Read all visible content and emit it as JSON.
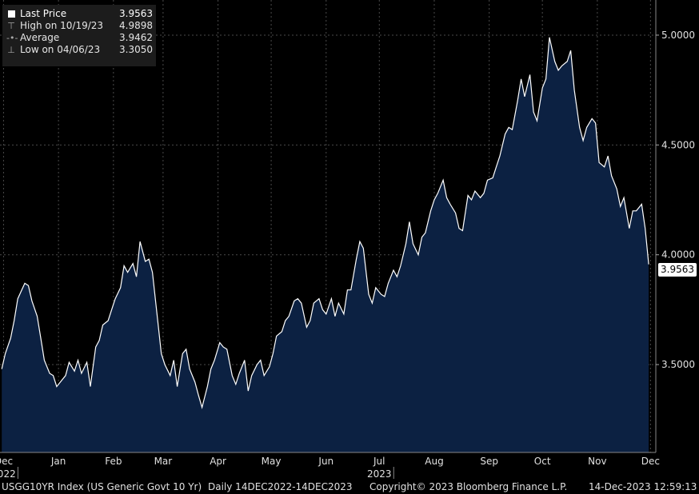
{
  "legend": [
    {
      "icon": "square-icon",
      "label": "Last Price",
      "value": "3.9563"
    },
    {
      "icon": "high-marker-icon",
      "label": "High on 10/19/23",
      "value": "4.9898"
    },
    {
      "icon": "average-marker-icon",
      "label": "Average",
      "value": "3.9462"
    },
    {
      "icon": "low-marker-icon",
      "label": "Low on 04/06/23",
      "value": "3.3050"
    }
  ],
  "last_price_label": "3.9563",
  "footer": {
    "ticker": "USGG10YR Index (US Generic Govt 10 Yr)",
    "range": "Daily 14DEC2022-14DEC2023",
    "copyright": "Copyright© 2023 Bloomberg Finance L.P.",
    "timestamp": "14-Dec-2023 12:59:13"
  },
  "colors": {
    "background": "#000000",
    "area_fill": "#0c2142",
    "line": "#ffffff",
    "grid": "#4a4a4a"
  },
  "chart_data": {
    "type": "area",
    "x_ticks": [
      {
        "label": "Dec",
        "year": "2022",
        "x": "2022-12-15"
      },
      {
        "label": "Jan",
        "x": "2023-01-15"
      },
      {
        "label": "Feb",
        "x": "2023-02-15"
      },
      {
        "label": "Mar",
        "x": "2023-03-15"
      },
      {
        "label": "Apr",
        "x": "2023-04-15"
      },
      {
        "label": "May",
        "x": "2023-05-15"
      },
      {
        "label": "Jun",
        "x": "2023-06-15"
      },
      {
        "label": "Jul",
        "year": "2023",
        "x": "2023-07-15"
      },
      {
        "label": "Aug",
        "x": "2023-08-15"
      },
      {
        "label": "Sep",
        "x": "2023-09-15"
      },
      {
        "label": "Oct",
        "x": "2023-10-15"
      },
      {
        "label": "Nov",
        "x": "2023-11-15"
      },
      {
        "label": "Dec",
        "x": "2023-12-15"
      }
    ],
    "y_ticks": [
      "5.0000",
      "4.5000",
      "4.0000",
      "3.5000"
    ],
    "ylim": [
      3.1,
      5.16
    ],
    "xlim": [
      "2022-12-13",
      "2023-12-18"
    ],
    "grid": true,
    "axis_side": "right",
    "series": [
      {
        "x": [
          "2022-12-14",
          "2022-12-16",
          "2022-12-19",
          "2022-12-21",
          "2022-12-23",
          "2022-12-27",
          "2022-12-29",
          "2022-12-31",
          "2023-01-03",
          "2023-01-05",
          "2023-01-07",
          "2023-01-10",
          "2023-01-12",
          "2023-01-14",
          "2023-01-17",
          "2023-01-19",
          "2023-01-21",
          "2023-01-24",
          "2023-01-26",
          "2023-01-28",
          "2023-01-31",
          "2023-02-02",
          "2023-02-05",
          "2023-02-07",
          "2023-02-09",
          "2023-02-12",
          "2023-02-14",
          "2023-02-16",
          "2023-02-19",
          "2023-02-21",
          "2023-02-23",
          "2023-02-26",
          "2023-02-28",
          "2023-03-02",
          "2023-03-05",
          "2023-03-07",
          "2023-03-09",
          "2023-03-12",
          "2023-03-14",
          "2023-03-16",
          "2023-03-19",
          "2023-03-21",
          "2023-03-23",
          "2023-03-26",
          "2023-03-28",
          "2023-03-30",
          "2023-04-02",
          "2023-04-04",
          "2023-04-06",
          "2023-04-09",
          "2023-04-11",
          "2023-04-13",
          "2023-04-16",
          "2023-04-18",
          "2023-04-20",
          "2023-04-23",
          "2023-04-25",
          "2023-04-27",
          "2023-04-30",
          "2023-05-02",
          "2023-05-04",
          "2023-05-07",
          "2023-05-09",
          "2023-05-11",
          "2023-05-14",
          "2023-05-16",
          "2023-05-18",
          "2023-05-21",
          "2023-05-23",
          "2023-05-25",
          "2023-05-28",
          "2023-05-30",
          "2023-06-01",
          "2023-06-04",
          "2023-06-06",
          "2023-06-08",
          "2023-06-11",
          "2023-06-13",
          "2023-06-15",
          "2023-06-18",
          "2023-06-20",
          "2023-06-22",
          "2023-06-25",
          "2023-06-27",
          "2023-06-29",
          "2023-07-02",
          "2023-07-04",
          "2023-07-06",
          "2023-07-09",
          "2023-07-11",
          "2023-07-13",
          "2023-07-16",
          "2023-07-18",
          "2023-07-20",
          "2023-07-23",
          "2023-07-25",
          "2023-07-27",
          "2023-07-30",
          "2023-08-01",
          "2023-08-03",
          "2023-08-06",
          "2023-08-08",
          "2023-08-10",
          "2023-08-13",
          "2023-08-15",
          "2023-08-17",
          "2023-08-20",
          "2023-08-22",
          "2023-08-24",
          "2023-08-27",
          "2023-08-29",
          "2023-08-31",
          "2023-09-03",
          "2023-09-05",
          "2023-09-07",
          "2023-09-10",
          "2023-09-12",
          "2023-09-14",
          "2023-09-17",
          "2023-09-19",
          "2023-09-21",
          "2023-09-24",
          "2023-09-26",
          "2023-09-28",
          "2023-10-01",
          "2023-10-03",
          "2023-10-05",
          "2023-10-08",
          "2023-10-10",
          "2023-10-12",
          "2023-10-15",
          "2023-10-17",
          "2023-10-19",
          "2023-10-22",
          "2023-10-24",
          "2023-10-26",
          "2023-10-29",
          "2023-10-31",
          "2023-11-02",
          "2023-11-05",
          "2023-11-07",
          "2023-11-09",
          "2023-11-12",
          "2023-11-14",
          "2023-11-16",
          "2023-11-19",
          "2023-11-21",
          "2023-11-23",
          "2023-11-26",
          "2023-11-28",
          "2023-11-30",
          "2023-12-03",
          "2023-12-05",
          "2023-12-07",
          "2023-12-10",
          "2023-12-12",
          "2023-12-14"
        ],
        "y": [
          3.48,
          3.55,
          3.62,
          3.7,
          3.8,
          3.87,
          3.86,
          3.79,
          3.72,
          3.62,
          3.52,
          3.46,
          3.45,
          3.4,
          3.43,
          3.45,
          3.51,
          3.47,
          3.52,
          3.46,
          3.51,
          3.4,
          3.58,
          3.61,
          3.68,
          3.7,
          3.75,
          3.8,
          3.85,
          3.95,
          3.92,
          3.96,
          3.9,
          4.06,
          3.97,
          3.98,
          3.92,
          3.7,
          3.55,
          3.5,
          3.45,
          3.52,
          3.4,
          3.55,
          3.57,
          3.48,
          3.42,
          3.36,
          3.305,
          3.4,
          3.48,
          3.52,
          3.6,
          3.58,
          3.57,
          3.45,
          3.41,
          3.46,
          3.52,
          3.38,
          3.45,
          3.5,
          3.52,
          3.45,
          3.49,
          3.55,
          3.63,
          3.65,
          3.7,
          3.72,
          3.79,
          3.8,
          3.78,
          3.67,
          3.7,
          3.78,
          3.8,
          3.75,
          3.73,
          3.8,
          3.72,
          3.78,
          3.73,
          3.84,
          3.84,
          3.98,
          4.06,
          4.03,
          3.82,
          3.78,
          3.85,
          3.82,
          3.81,
          3.87,
          3.93,
          3.9,
          3.95,
          4.05,
          4.15,
          4.05,
          4.0,
          4.08,
          4.1,
          4.2,
          4.25,
          4.28,
          4.34,
          4.26,
          4.23,
          4.19,
          4.12,
          4.11,
          4.27,
          4.25,
          4.29,
          4.26,
          4.28,
          4.34,
          4.35,
          4.4,
          4.45,
          4.55,
          4.58,
          4.57,
          4.7,
          4.8,
          4.72,
          4.82,
          4.65,
          4.61,
          4.76,
          4.8,
          4.99,
          4.88,
          4.84,
          4.86,
          4.88,
          4.93,
          4.75,
          4.58,
          4.52,
          4.58,
          4.62,
          4.6,
          4.42,
          4.4,
          4.45,
          4.36,
          4.3,
          4.22,
          4.26,
          4.12,
          4.2,
          4.2,
          4.23,
          4.12,
          3.9563
        ]
      }
    ]
  }
}
